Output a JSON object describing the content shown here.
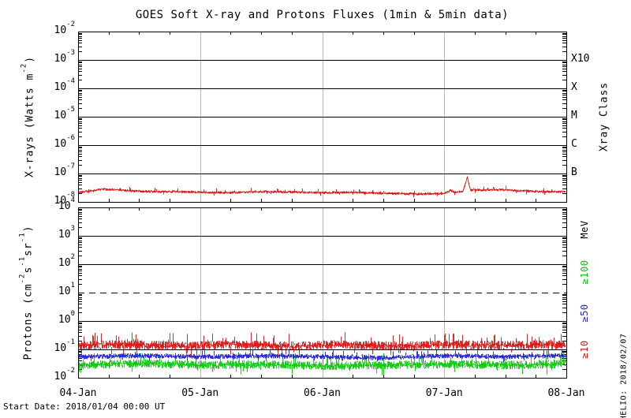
{
  "title": "GOES Soft X-ray and Protons Fluxes   (1min & 5min data)",
  "footer": {
    "start_date_label": "Start Date: 2018/01/04 00:00 UT"
  },
  "watermark": "HELIO: 2018/02/07",
  "colors": {
    "background": "#ffffff",
    "axis": "#000000",
    "day_gridline": "#b8b8b8",
    "xray_red": "#e01010",
    "proton_ge10_red": "#e01010",
    "proton_ge50_blue": "#2020dd",
    "proton_ge100_green": "#00cc00"
  },
  "chart_data": [
    {
      "type": "line",
      "panel": "xray",
      "title": "GOES Soft X-ray and Protons Fluxes   (1min & 5min data)",
      "ylabel": "X-rays (Watts m-2)",
      "ylabel_parts": [
        {
          "t": "X-rays (Watts m"
        },
        {
          "sup": "-2"
        },
        {
          "t": ")"
        }
      ],
      "ylim_log10": [
        -8,
        -2
      ],
      "y_ticks_exp": [
        -2,
        -3,
        -4,
        -5,
        -6,
        -7,
        -8
      ],
      "dashed_exps": [],
      "x_range_days": 4,
      "x_ticks": [
        "04-Jan",
        "05-Jan",
        "06-Jan",
        "07-Jan",
        "08-Jan"
      ],
      "right_title": "Xray Class",
      "right_labels": [
        {
          "label": "X10",
          "at_log10": -3,
          "color": "#000000"
        },
        {
          "label": "X",
          "at_log10": -4,
          "color": "#000000"
        },
        {
          "label": "M",
          "at_log10": -5,
          "color": "#000000"
        },
        {
          "label": "C",
          "at_log10": -6,
          "color": "#000000"
        },
        {
          "label": "B",
          "at_log10": -7,
          "color": "#000000"
        }
      ],
      "series": [
        {
          "name": "goes-xray-long-band",
          "color": "#e01010",
          "noise_sigma_log10": 0.05,
          "tail_prob": 0.03,
          "tail_mult": 2.0,
          "seed": 7,
          "points_day_value": [
            [
              0.0,
              2.2e-08
            ],
            [
              0.1,
              2.4e-08
            ],
            [
              0.2,
              2.8e-08
            ],
            [
              0.3,
              2.7e-08
            ],
            [
              0.45,
              2.4e-08
            ],
            [
              0.6,
              2.3e-08
            ],
            [
              0.8,
              2.3e-08
            ],
            [
              1.0,
              2.2e-08
            ],
            [
              1.2,
              2.1e-08
            ],
            [
              1.5,
              2.3e-08
            ],
            [
              1.8,
              2.2e-08
            ],
            [
              2.0,
              2.1e-08
            ],
            [
              2.2,
              2.2e-08
            ],
            [
              2.5,
              2e-08
            ],
            [
              2.8,
              1.9e-08
            ],
            [
              3.0,
              2e-08
            ],
            [
              3.05,
              2.6e-08
            ],
            [
              3.08,
              2.2e-08
            ],
            [
              3.15,
              2.3e-08
            ],
            [
              3.185,
              7.5e-08
            ],
            [
              3.21,
              2.7e-08
            ],
            [
              3.3,
              2.6e-08
            ],
            [
              3.45,
              2.7e-08
            ],
            [
              3.6,
              2.5e-08
            ],
            [
              3.8,
              2.3e-08
            ],
            [
              4.0,
              2.3e-08
            ]
          ]
        }
      ]
    },
    {
      "type": "line",
      "panel": "protons",
      "ylabel": "Protons (cm-2s-1sr-1)",
      "ylabel_parts": [
        {
          "t": "Protons (cm"
        },
        {
          "sup": "-2"
        },
        {
          "t": "s"
        },
        {
          "sup": "-1"
        },
        {
          "t": "sr"
        },
        {
          "sup": "-1"
        },
        {
          "t": ")"
        }
      ],
      "ylim_log10": [
        -2,
        4
      ],
      "y_ticks_exp": [
        4,
        3,
        2,
        1,
        0,
        -1,
        -2
      ],
      "dashed_exps": [
        1
      ],
      "threshold_dashed_log10": 1,
      "x_range_days": 4,
      "x_ticks": [
        "04-Jan",
        "05-Jan",
        "06-Jan",
        "07-Jan",
        "08-Jan"
      ],
      "right_unit": "MeV",
      "right_unit_at_log10": 3.22,
      "right_labels": [
        {
          "label": "≥100",
          "at_log10": 1.72,
          "color": "#00cc00"
        },
        {
          "label": "≥50",
          "at_log10": 0.28,
          "color": "#2020dd"
        },
        {
          "label": "≥10",
          "at_log10": -1.0,
          "color": "#e01010"
        }
      ],
      "series": [
        {
          "name": "protons-ge100-mev",
          "color": "#00cc00",
          "noise_sigma_log10": 0.15,
          "tail_prob": 0.06,
          "tail_mult": 1.8,
          "seed": 41,
          "points_day_value": [
            [
              0.0,
              0.028
            ],
            [
              0.5,
              0.032
            ],
            [
              1.0,
              0.028
            ],
            [
              1.5,
              0.03
            ],
            [
              2.0,
              0.026
            ],
            [
              2.5,
              0.028
            ],
            [
              3.0,
              0.03
            ],
            [
              3.5,
              0.028
            ],
            [
              4.0,
              0.03
            ]
          ]
        },
        {
          "name": "protons-ge50-mev",
          "color": "#2020dd",
          "noise_sigma_log10": 0.09,
          "tail_prob": 0.04,
          "tail_mult": 1.6,
          "seed": 23,
          "points_day_value": [
            [
              0.0,
              0.055
            ],
            [
              0.5,
              0.06
            ],
            [
              1.0,
              0.055
            ],
            [
              1.5,
              0.06
            ],
            [
              2.0,
              0.055
            ],
            [
              2.5,
              0.05
            ],
            [
              3.0,
              0.06
            ],
            [
              3.5,
              0.055
            ],
            [
              4.0,
              0.06
            ]
          ]
        },
        {
          "name": "protons-ge10-mev",
          "color": "#e01010",
          "noise_sigma_log10": 0.16,
          "tail_prob": 0.06,
          "tail_mult": 1.8,
          "seed": 11,
          "points_day_value": [
            [
              0.0,
              0.13
            ],
            [
              0.3,
              0.15
            ],
            [
              0.6,
              0.14
            ],
            [
              0.9,
              0.13
            ],
            [
              1.2,
              0.15
            ],
            [
              1.5,
              0.14
            ],
            [
              1.8,
              0.13
            ],
            [
              2.1,
              0.15
            ],
            [
              2.4,
              0.14
            ],
            [
              2.7,
              0.13
            ],
            [
              3.0,
              0.15
            ],
            [
              3.3,
              0.14
            ],
            [
              3.6,
              0.14
            ],
            [
              4.0,
              0.15
            ]
          ]
        }
      ]
    }
  ]
}
